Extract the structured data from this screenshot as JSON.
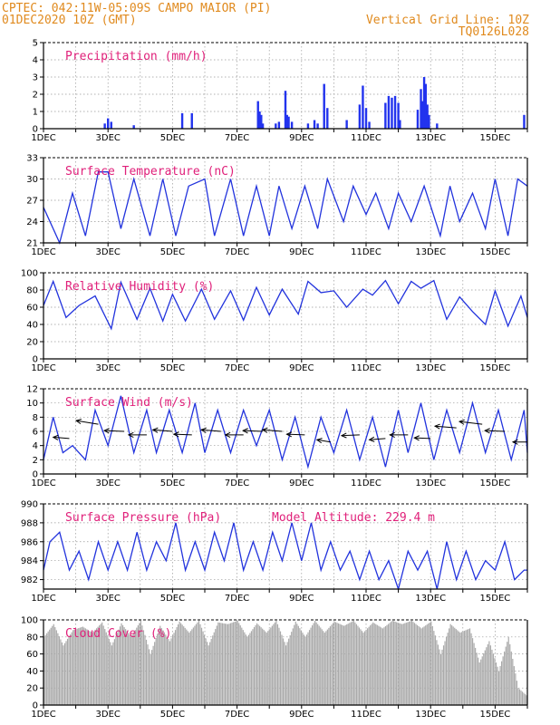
{
  "header": {
    "line1": "CPTEC:  042:11W-05:09S  CAMPO MAIOR (PI)",
    "line2": "01DEC2020 10Z (GMT)",
    "grid_note": "Vertical Grid Line: 10Z",
    "code": "TQ0126L028"
  },
  "colors": {
    "header": "#e08a1e",
    "title": "#e0207a",
    "line": "#2233dd",
    "bar": "#2233ee",
    "cloud": "#aaaaaa"
  },
  "x_labels": [
    "1DEC",
    "3DEC",
    "5DEC",
    "7DEC",
    "9DEC",
    "11DEC",
    "13DEC",
    "15DEC"
  ],
  "chart_data": [
    {
      "type": "bar",
      "title": "Precipitation (mm/h)",
      "ylim": [
        0,
        5
      ],
      "yticks": [
        0,
        1,
        2,
        3,
        4,
        5
      ],
      "x": [
        2.9,
        3.0,
        3.1,
        3.8,
        5.3,
        5.6,
        7.65,
        7.7,
        7.75,
        7.8,
        8.2,
        8.3,
        8.5,
        8.55,
        8.6,
        8.7,
        9.2,
        9.4,
        9.5,
        9.7,
        9.8,
        10.4,
        10.8,
        10.9,
        11.0,
        11.1,
        11.6,
        11.7,
        11.8,
        11.9,
        12.0,
        12.05,
        12.6,
        12.7,
        12.75,
        12.8,
        12.85,
        12.9,
        12.95,
        13.2,
        15.9
      ],
      "values": [
        0.3,
        0.6,
        0.4,
        0.2,
        0.9,
        0.9,
        1.6,
        1.0,
        0.8,
        0.3,
        0.3,
        0.4,
        2.2,
        0.8,
        0.7,
        0.4,
        0.3,
        0.5,
        0.3,
        2.6,
        1.2,
        0.5,
        1.4,
        2.5,
        1.2,
        0.4,
        1.5,
        1.9,
        1.8,
        1.9,
        1.5,
        0.5,
        1.1,
        2.3,
        1.6,
        3.0,
        2.6,
        1.4,
        0.8,
        0.3,
        0.8
      ]
    },
    {
      "type": "line",
      "title": "Surface Temperature (nC)",
      "ylim": [
        21,
        33
      ],
      "yticks": [
        21,
        24,
        27,
        30,
        33
      ],
      "x": [
        1.0,
        1.5,
        1.9,
        2.3,
        2.7,
        3.0,
        3.4,
        3.8,
        4.3,
        4.7,
        5.1,
        5.5,
        6.0,
        6.3,
        6.8,
        7.2,
        7.6,
        8.0,
        8.3,
        8.7,
        9.1,
        9.5,
        9.8,
        10.3,
        10.6,
        11.0,
        11.3,
        11.7,
        12.0,
        12.4,
        12.8,
        13.3,
        13.6,
        13.9,
        14.3,
        14.7,
        15.0,
        15.4,
        15.7,
        16.0
      ],
      "values": [
        26,
        21,
        28,
        22,
        31,
        31,
        23,
        30,
        22,
        30,
        22,
        29,
        30,
        22,
        30,
        22,
        29,
        22,
        29,
        23,
        29,
        23,
        30,
        24,
        29,
        25,
        28,
        23,
        28,
        24,
        29,
        22,
        29,
        24,
        28,
        23,
        30,
        22,
        30,
        29
      ]
    },
    {
      "type": "line",
      "title": "Relative Humidity (%)",
      "ylim": [
        0,
        100
      ],
      "yticks": [
        0,
        20,
        40,
        60,
        80,
        100
      ],
      "x": [
        1.0,
        1.3,
        1.7,
        2.1,
        2.6,
        3.1,
        3.4,
        3.9,
        4.3,
        4.7,
        5.0,
        5.4,
        5.9,
        6.3,
        6.8,
        7.2,
        7.6,
        8.0,
        8.4,
        8.9,
        9.2,
        9.6,
        10.0,
        10.4,
        10.9,
        11.2,
        11.6,
        12.0,
        12.4,
        12.7,
        13.1,
        13.5,
        13.9,
        14.3,
        14.7,
        15.0,
        15.4,
        15.8,
        16.0
      ],
      "values": [
        62,
        90,
        48,
        62,
        73,
        35,
        89,
        46,
        82,
        44,
        75,
        44,
        81,
        46,
        79,
        45,
        83,
        51,
        81,
        52,
        90,
        77,
        79,
        60,
        81,
        74,
        91,
        64,
        90,
        82,
        91,
        46,
        72,
        55,
        40,
        79,
        38,
        73,
        48
      ]
    },
    {
      "type": "line",
      "title": "Surface Wind (m/s)",
      "ylim": [
        0,
        12
      ],
      "yticks": [
        0,
        2,
        4,
        6,
        8,
        10,
        12
      ],
      "x": [
        1.0,
        1.3,
        1.6,
        1.9,
        2.3,
        2.6,
        3.0,
        3.4,
        3.8,
        4.2,
        4.5,
        4.9,
        5.3,
        5.7,
        6.0,
        6.4,
        6.8,
        7.2,
        7.6,
        8.0,
        8.4,
        8.8,
        9.2,
        9.6,
        10.0,
        10.4,
        10.8,
        11.2,
        11.6,
        12.0,
        12.3,
        12.7,
        13.1,
        13.5,
        13.9,
        14.3,
        14.7,
        15.1,
        15.5,
        15.9,
        16.0
      ],
      "values": [
        2,
        8,
        3,
        4,
        2,
        9,
        4,
        11,
        3,
        9,
        3,
        9,
        3,
        10,
        3,
        9,
        3,
        9,
        4,
        9,
        2,
        8,
        1,
        8,
        3,
        9,
        2,
        8,
        1,
        9,
        3,
        10,
        2,
        9,
        3,
        10,
        3,
        9,
        2,
        9,
        3
      ],
      "arrows": {
        "x": [
          1.8,
          2.7,
          3.5,
          4.2,
          5.0,
          5.6,
          6.5,
          7.2,
          7.8,
          8.4,
          9.1,
          9.9,
          10.8,
          11.6,
          12.3,
          13.0,
          13.8,
          14.6,
          15.3,
          16.0
        ],
        "speed": [
          5.0,
          7.0,
          6.0,
          5.5,
          6.0,
          5.5,
          6.0,
          5.5,
          6.0,
          6.0,
          5.5,
          4.5,
          5.5,
          5.0,
          5.5,
          5.0,
          6.5,
          7.0,
          6.0,
          4.5
        ],
        "dir": [
          100,
          110,
          95,
          90,
          100,
          95,
          100,
          90,
          95,
          100,
          95,
          110,
          85,
          80,
          90,
          95,
          100,
          105,
          95,
          90
        ]
      }
    },
    {
      "type": "line",
      "title": "Surface Pressure (hPa)",
      "ylim": [
        981,
        990
      ],
      "yticks": [
        982,
        984,
        986,
        988,
        990
      ],
      "annotation": "Model Altitude: 229.4 m",
      "x": [
        1.0,
        1.2,
        1.5,
        1.8,
        2.1,
        2.4,
        2.7,
        3.0,
        3.3,
        3.6,
        3.9,
        4.2,
        4.5,
        4.8,
        5.1,
        5.4,
        5.7,
        6.0,
        6.3,
        6.6,
        6.9,
        7.2,
        7.5,
        7.8,
        8.1,
        8.4,
        8.7,
        9.0,
        9.3,
        9.6,
        9.9,
        10.2,
        10.5,
        10.8,
        11.1,
        11.4,
        11.7,
        12.0,
        12.3,
        12.6,
        12.9,
        13.2,
        13.5,
        13.8,
        14.1,
        14.4,
        14.7,
        15.0,
        15.3,
        15.6,
        15.9,
        16.0
      ],
      "values": [
        983,
        986,
        987,
        983,
        985,
        982,
        986,
        983,
        986,
        983,
        987,
        983,
        986,
        984,
        988,
        983,
        986,
        983,
        987,
        984,
        988,
        983,
        986,
        983,
        987,
        984,
        988,
        984,
        988,
        983,
        986,
        983,
        985,
        982,
        985,
        982,
        984,
        981,
        985,
        983,
        985,
        981,
        986,
        982,
        985,
        982,
        984,
        983,
        986,
        982,
        983,
        983
      ]
    },
    {
      "type": "area",
      "title": "Cloud Cover (%)",
      "ylim": [
        0,
        100
      ],
      "yticks": [
        0,
        20,
        40,
        60,
        80,
        100
      ],
      "x": [
        1.0,
        1.3,
        1.6,
        1.9,
        2.2,
        2.5,
        2.8,
        3.1,
        3.4,
        3.7,
        4.0,
        4.3,
        4.6,
        4.9,
        5.2,
        5.5,
        5.8,
        6.1,
        6.4,
        6.7,
        7.0,
        7.3,
        7.6,
        7.9,
        8.2,
        8.5,
        8.8,
        9.1,
        9.4,
        9.7,
        10.0,
        10.3,
        10.6,
        10.9,
        11.2,
        11.5,
        11.8,
        12.1,
        12.4,
        12.7,
        13.0,
        13.3,
        13.6,
        13.9,
        14.2,
        14.5,
        14.8,
        15.1,
        15.4,
        15.7,
        16.0
      ],
      "values": [
        80,
        95,
        70,
        88,
        92,
        85,
        97,
        70,
        96,
        80,
        99,
        60,
        93,
        75,
        98,
        85,
        99,
        70,
        97,
        95,
        99,
        80,
        96,
        85,
        99,
        70,
        98,
        80,
        99,
        85,
        98,
        93,
        99,
        85,
        97,
        90,
        99,
        95,
        99,
        90,
        98,
        60,
        95,
        85,
        90,
        50,
        75,
        40,
        80,
        20,
        10
      ]
    }
  ]
}
